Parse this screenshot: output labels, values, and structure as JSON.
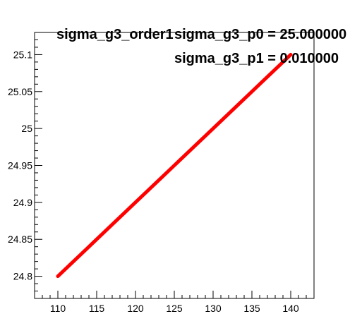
{
  "stats": {
    "title": "sigma_g3_order1",
    "p0_label": "sigma_g3_p0 = 25.000000",
    "p1_label": "sigma_g3_p1 = 0.010000"
  },
  "chart_data": {
    "type": "line",
    "title": "sigma_g3_order1",
    "xlabel": "",
    "ylabel": "",
    "xlim": [
      107,
      143
    ],
    "ylim": [
      24.77,
      25.13
    ],
    "x_ticks": [
      110,
      115,
      120,
      125,
      130,
      135,
      140
    ],
    "y_ticks": [
      24.8,
      24.85,
      24.9,
      24.95,
      25,
      25.05,
      25.1
    ],
    "x_tick_labels": [
      "110",
      "115",
      "120",
      "125",
      "130",
      "135",
      "140"
    ],
    "y_tick_labels": [
      "24.8",
      "24.85",
      "24.9",
      "24.95",
      "25",
      "25.05",
      "25.1"
    ],
    "grid": false,
    "legend": "none",
    "series": [
      {
        "color": "#ff0000",
        "x": [
          110,
          115,
          120,
          125,
          130,
          135,
          140
        ],
        "y": [
          24.8,
          24.85,
          24.9,
          24.95,
          25.0,
          25.05,
          25.1
        ]
      }
    ]
  }
}
